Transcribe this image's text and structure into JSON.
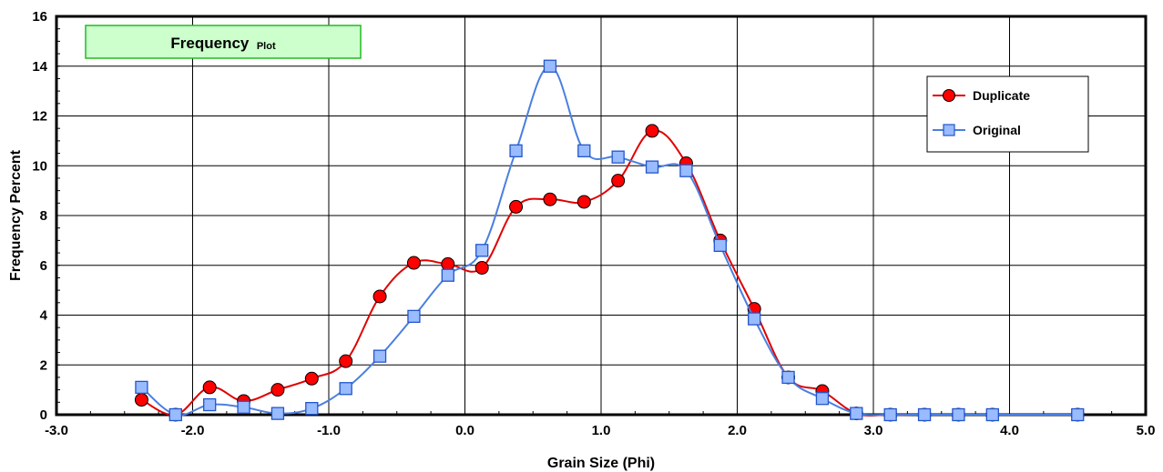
{
  "chart_data": {
    "type": "line",
    "title": "Frequency",
    "title_suffix": "Plot",
    "xlabel": "Grain Size (Phi)",
    "ylabel": "Frequency Percent",
    "xlim": [
      -3.0,
      5.0
    ],
    "ylim": [
      0,
      16
    ],
    "x_ticks": [
      -3.0,
      -2.0,
      -1.0,
      0.0,
      1.0,
      2.0,
      3.0,
      4.0,
      5.0
    ],
    "x_tick_labels": [
      "-3.0",
      "-2.0",
      "-1.0",
      "0.0",
      "1.0",
      "2.0",
      "3.0",
      "4.0",
      "5.0"
    ],
    "y_ticks": [
      0,
      2,
      4,
      6,
      8,
      10,
      12,
      14,
      16
    ],
    "y_tick_labels": [
      "0",
      "2",
      "4",
      "6",
      "8",
      "10",
      "12",
      "14",
      "16"
    ],
    "grid": true,
    "smooth": true,
    "legend_position": "top-right",
    "series": [
      {
        "name": "Duplicate",
        "color": "#e00000",
        "marker": "circle",
        "marker_color": "#ff0000",
        "points": [
          [
            -2.375,
            0.6
          ],
          [
            -2.125,
            0.0
          ],
          [
            -1.875,
            1.1
          ],
          [
            -1.625,
            0.55
          ],
          [
            -1.375,
            1.0
          ],
          [
            -1.125,
            1.45
          ],
          [
            -0.875,
            2.15
          ],
          [
            -0.625,
            4.75
          ],
          [
            -0.375,
            6.1
          ],
          [
            -0.125,
            6.05
          ],
          [
            0.125,
            5.9
          ],
          [
            0.375,
            8.35
          ],
          [
            0.625,
            8.65
          ],
          [
            0.875,
            8.55
          ],
          [
            1.125,
            9.4
          ],
          [
            1.375,
            11.4
          ],
          [
            1.625,
            10.1
          ],
          [
            1.875,
            7.0
          ],
          [
            2.125,
            4.25
          ],
          [
            2.375,
            1.5
          ],
          [
            2.625,
            0.95
          ],
          [
            2.875,
            0.05
          ],
          [
            3.125,
            0.0
          ],
          [
            3.375,
            0.0
          ],
          [
            3.625,
            0.0
          ],
          [
            3.875,
            0.0
          ],
          [
            4.5,
            0.0
          ]
        ]
      },
      {
        "name": "Original",
        "color": "#4a7fe0",
        "marker": "square",
        "marker_color": "#99bbff",
        "points": [
          [
            -2.375,
            1.1
          ],
          [
            -2.125,
            0.0
          ],
          [
            -1.875,
            0.4
          ],
          [
            -1.625,
            0.3
          ],
          [
            -1.375,
            0.05
          ],
          [
            -1.125,
            0.25
          ],
          [
            -0.875,
            1.05
          ],
          [
            -0.625,
            2.35
          ],
          [
            -0.375,
            3.95
          ],
          [
            -0.125,
            5.6
          ],
          [
            0.125,
            6.6
          ],
          [
            0.375,
            10.6
          ],
          [
            0.625,
            14.0
          ],
          [
            0.875,
            10.6
          ],
          [
            1.125,
            10.35
          ],
          [
            1.375,
            9.95
          ],
          [
            1.625,
            9.8
          ],
          [
            1.875,
            6.8
          ],
          [
            2.125,
            3.85
          ],
          [
            2.375,
            1.5
          ],
          [
            2.625,
            0.65
          ],
          [
            2.875,
            0.05
          ],
          [
            3.125,
            0.0
          ],
          [
            3.375,
            0.0
          ],
          [
            3.625,
            0.0
          ],
          [
            3.875,
            0.0
          ],
          [
            4.5,
            0.0
          ]
        ]
      }
    ]
  }
}
